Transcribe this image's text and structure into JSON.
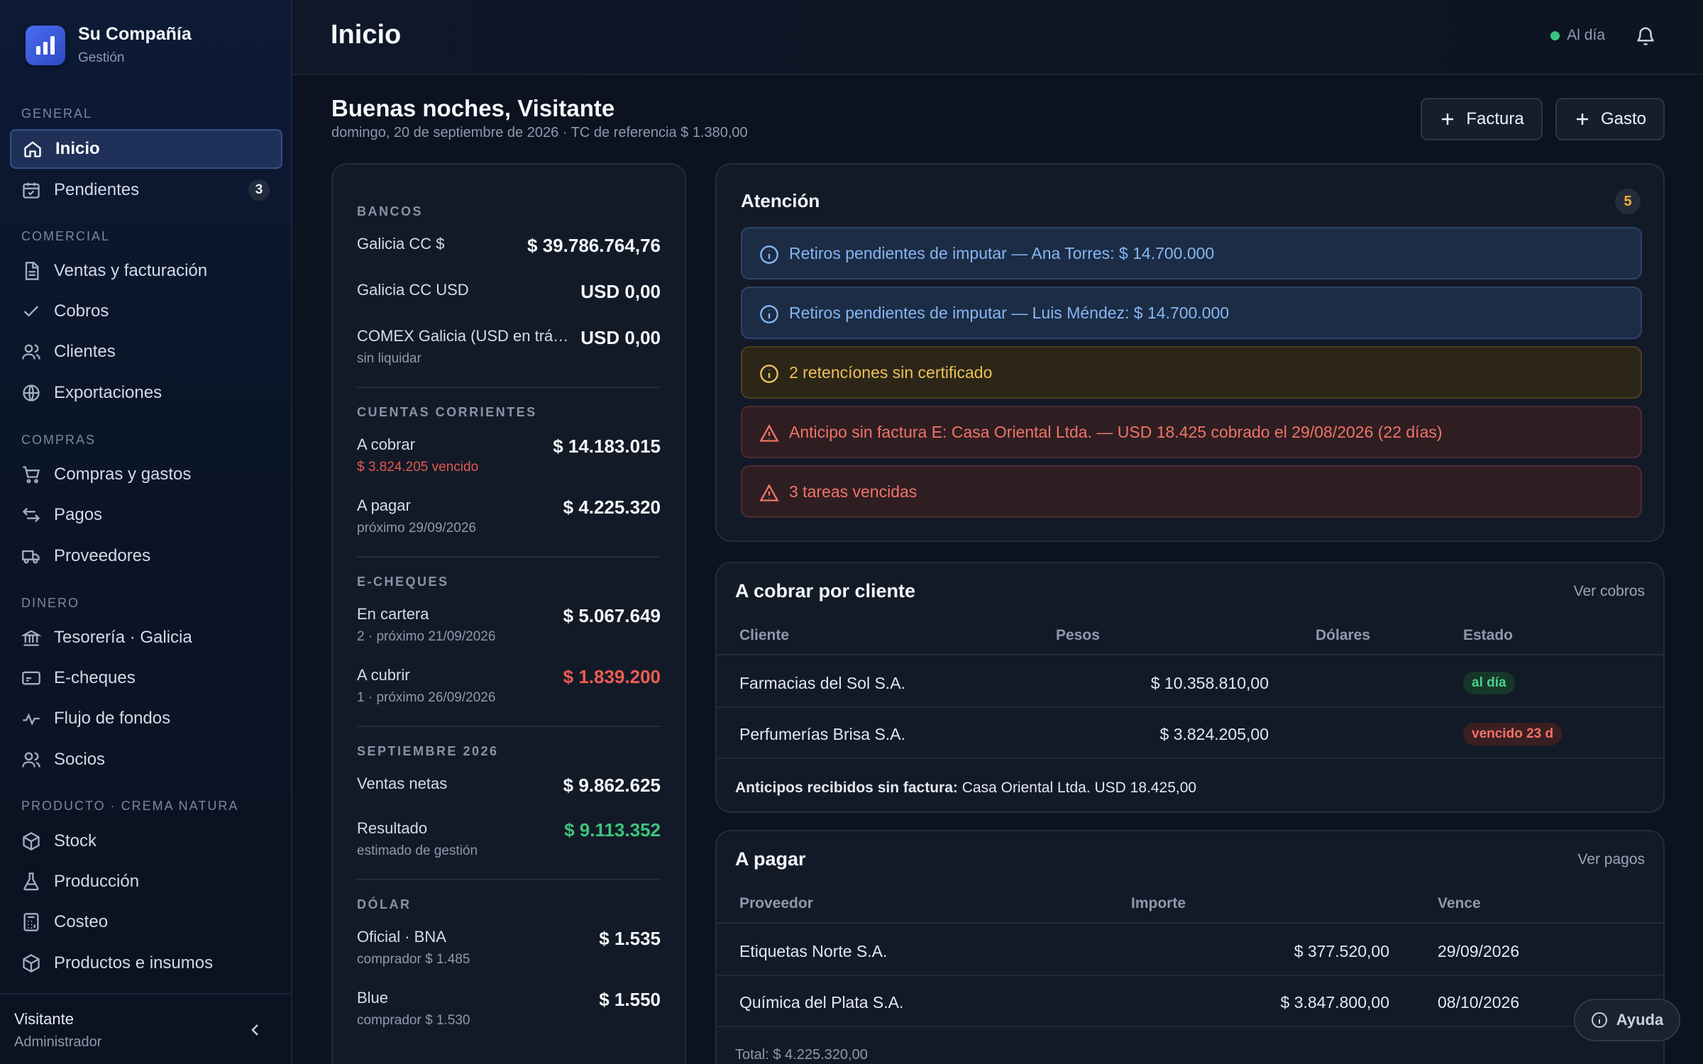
{
  "brand": {
    "name": "Su Compañía",
    "subtitle": "Gestión"
  },
  "sidebar": {
    "sections": {
      "general": "GENERAL",
      "comercial": "COMERCIAL",
      "compras": "COMPRAS",
      "dinero": "DINERO",
      "producto": "PRODUCTO · CREMA NATURA"
    },
    "items": {
      "inicio": "Inicio",
      "pendientes": "Pendientes",
      "pendientes_badge": "3",
      "ventas": "Ventas y facturación",
      "cobros": "Cobros",
      "clientes": "Clientes",
      "exportaciones": "Exportaciones",
      "compras_gastos": "Compras y gastos",
      "pagos": "Pagos",
      "proveedores": "Proveedores",
      "tesoreria": "Tesorería · Galicia",
      "echeques": "E-cheques",
      "flujo": "Flujo de fondos",
      "socios": "Socios",
      "stock": "Stock",
      "produccion": "Producción",
      "costeo": "Costeo",
      "productos": "Productos e insumos"
    },
    "user": {
      "name": "Visitante",
      "role": "Administrador"
    }
  },
  "header": {
    "title": "Inicio",
    "status": "Al día"
  },
  "greeting": {
    "title": "Buenas noches, Visitante",
    "subtitle": "domingo, 20 de septiembre de 2026 · TC de referencia $ 1.380,00"
  },
  "actions": {
    "factura": "Factura",
    "gasto": "Gasto"
  },
  "summary": {
    "bancos": {
      "title": "BANCOS",
      "rows": [
        {
          "label": "Galicia CC $",
          "value": "$ 39.786.764,76"
        },
        {
          "label": "Galicia CC USD",
          "value": "USD 0,00"
        },
        {
          "label": "COMEX Galicia (USD en trá…",
          "sub": "sin liquidar",
          "value": "USD 0,00"
        }
      ]
    },
    "cuentas": {
      "title": "CUENTAS CORRIENTES",
      "rows": [
        {
          "label": "A cobrar",
          "sub": "$ 3.824.205 vencido",
          "value": "$ 14.183.015"
        },
        {
          "label": "A pagar",
          "sub": "próximo 29/09/2026",
          "value": "$ 4.225.320"
        }
      ]
    },
    "echeques": {
      "title": "E-CHEQUES",
      "rows": [
        {
          "label": "En cartera",
          "sub": "2 · próximo 21/09/2026",
          "value": "$ 5.067.649"
        },
        {
          "label": "A cubrir",
          "sub": "1 · próximo 26/09/2026",
          "value": "$ 1.839.200"
        }
      ]
    },
    "mes": {
      "title": "SEPTIEMBRE 2026",
      "rows": [
        {
          "label": "Ventas netas",
          "value": "$ 9.862.625"
        },
        {
          "label": "Resultado",
          "sub": "estimado de gestión",
          "value": "$ 9.113.352"
        }
      ]
    },
    "dolar": {
      "title": "DÓLAR",
      "rows": [
        {
          "label": "Oficial · BNA",
          "sub": "comprador $ 1.485",
          "value": "$ 1.535"
        },
        {
          "label": "Blue",
          "sub": "comprador $ 1.530",
          "value": "$ 1.550"
        }
      ]
    }
  },
  "attention": {
    "title": "Atención",
    "count": "5",
    "alerts": [
      {
        "type": "info",
        "text": "Retiros pendientes de imputar — Ana Torres: $ 14.700.000"
      },
      {
        "type": "info",
        "text": "Retiros pendientes de imputar — Luis Méndez: $ 14.700.000"
      },
      {
        "type": "warn",
        "text": "2 retencíones sin certificado"
      },
      {
        "type": "danger",
        "text": "Anticipo sin factura E: Casa Oriental Ltda. — USD 18.425 cobrado el 29/08/2026 (22 días)"
      },
      {
        "type": "danger",
        "text": "3 tareas vencidas"
      }
    ]
  },
  "cobrar": {
    "title": "A cobrar por cliente",
    "link": "Ver cobros",
    "columns": {
      "cliente": "Cliente",
      "pesos": "Pesos",
      "dolares": "Dólares",
      "estado": "Estado"
    },
    "rows": [
      {
        "cliente": "Farmacias del Sol S.A.",
        "pesos": "$ 10.358.810,00",
        "dolares": "",
        "estado": "al día"
      },
      {
        "cliente": "Perfumerías Brisa S.A.",
        "pesos": "$ 3.824.205,00",
        "dolares": "",
        "estado": "vencido 23 d"
      }
    ],
    "footer_label": "Anticipos recibidos sin factura:",
    "footer_value": "Casa Oriental Ltda. USD 18.425,00"
  },
  "pagar": {
    "title": "A pagar",
    "link": "Ver pagos",
    "columns": {
      "proveedor": "Proveedor",
      "importe": "Importe",
      "vence": "Vence"
    },
    "rows": [
      {
        "proveedor": "Etiquetas Norte S.A.",
        "importe": "$ 377.520,00",
        "vence": "29/09/2026"
      },
      {
        "proveedor": "Química del Plata S.A.",
        "importe": "$ 3.847.800,00",
        "vence": "08/10/2026"
      }
    ],
    "total": "Total: $ 4.225.320,00"
  },
  "help": {
    "label": "Ayuda"
  }
}
